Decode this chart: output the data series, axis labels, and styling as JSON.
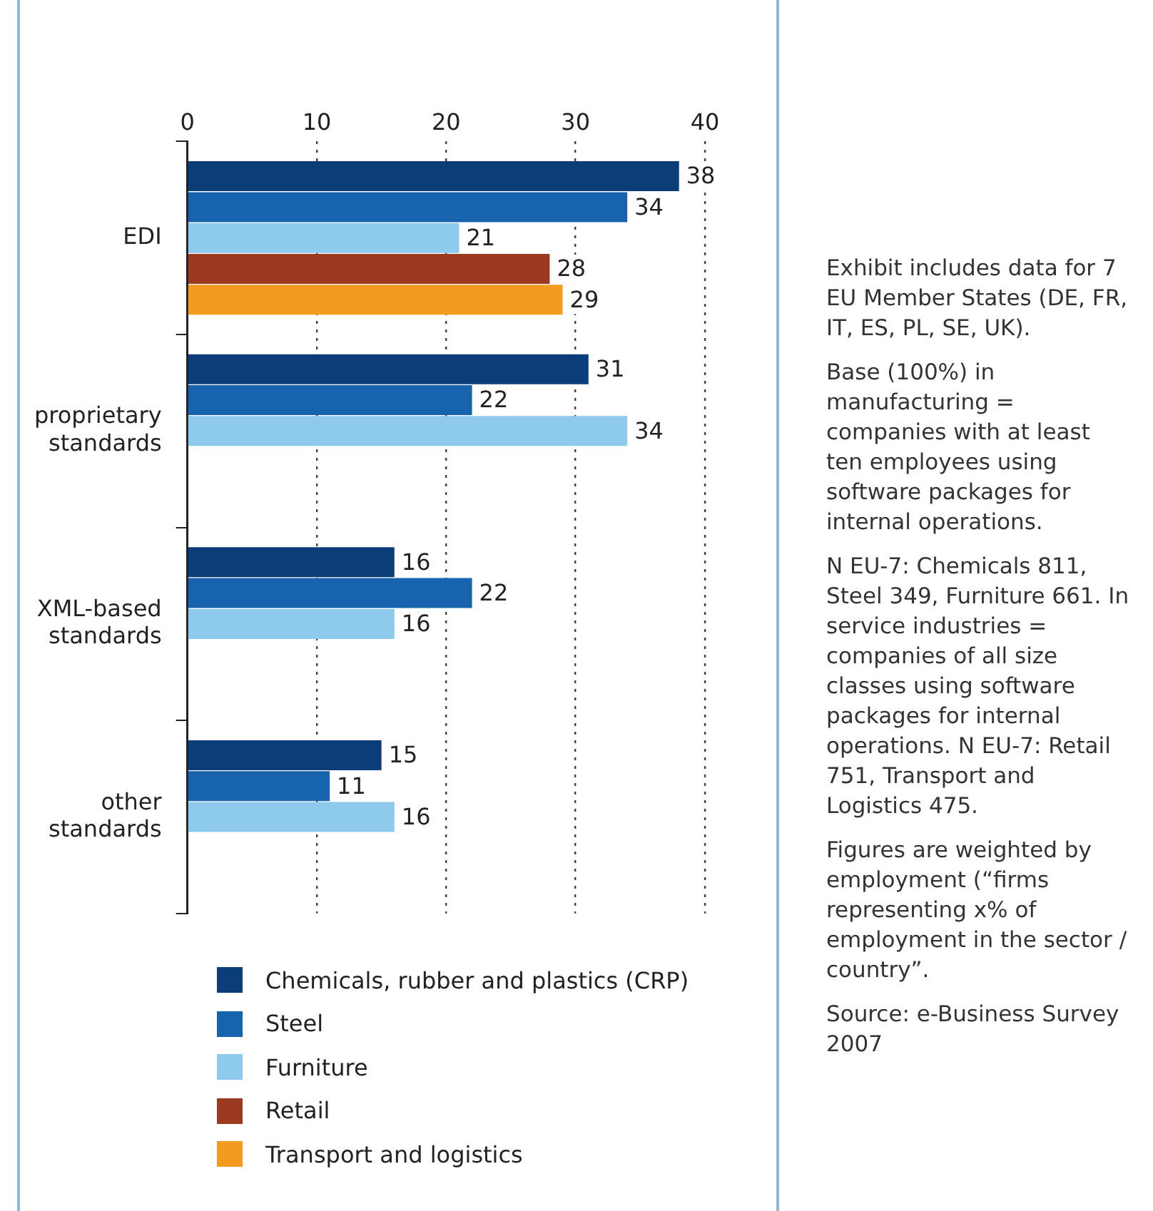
{
  "chart_data": {
    "type": "bar",
    "orientation": "horizontal",
    "categories": [
      "EDI",
      "proprietary standards",
      "XML-based standards",
      "other standards"
    ],
    "series": [
      {
        "name": "Chemicals, rubber and plastics (CRP)",
        "color": "#0b3d78",
        "values": [
          38,
          31,
          16,
          15
        ]
      },
      {
        "name": "Steel",
        "color": "#1763ae",
        "values": [
          34,
          22,
          22,
          11
        ]
      },
      {
        "name": "Furniture",
        "color": "#8dcaeb",
        "values": [
          21,
          34,
          16,
          16
        ]
      },
      {
        "name": "Retail",
        "color": "#9b3a20",
        "values": [
          28,
          null,
          null,
          null
        ]
      },
      {
        "name": "Transport and logistics",
        "color": "#f29b1f",
        "values": [
          29,
          null,
          null,
          null
        ]
      }
    ],
    "xlim": [
      0,
      40
    ],
    "xticks": [
      0,
      10,
      20,
      30,
      40
    ],
    "grid": "x",
    "legend": "bottom",
    "data_labels": true,
    "annotations": [
      "Exhibit includes data for 7 EU Member States (DE, FR, IT, ES, PL, SE, UK).",
      "Base (100%) in manufacturing = companies with at least ten employees using software packages for internal operations.",
      "N EU-7: Chemicals 811, Steel 349, Furniture 661. In service industries = companies of all size classes using software packages for internal operations. N EU-7: Retail 751, Transport and Logistics 475.",
      "Figures are weighted by employment (“firms representing x% of employment in the sector / country”.",
      "Source: e-Business Survey 2007"
    ]
  }
}
